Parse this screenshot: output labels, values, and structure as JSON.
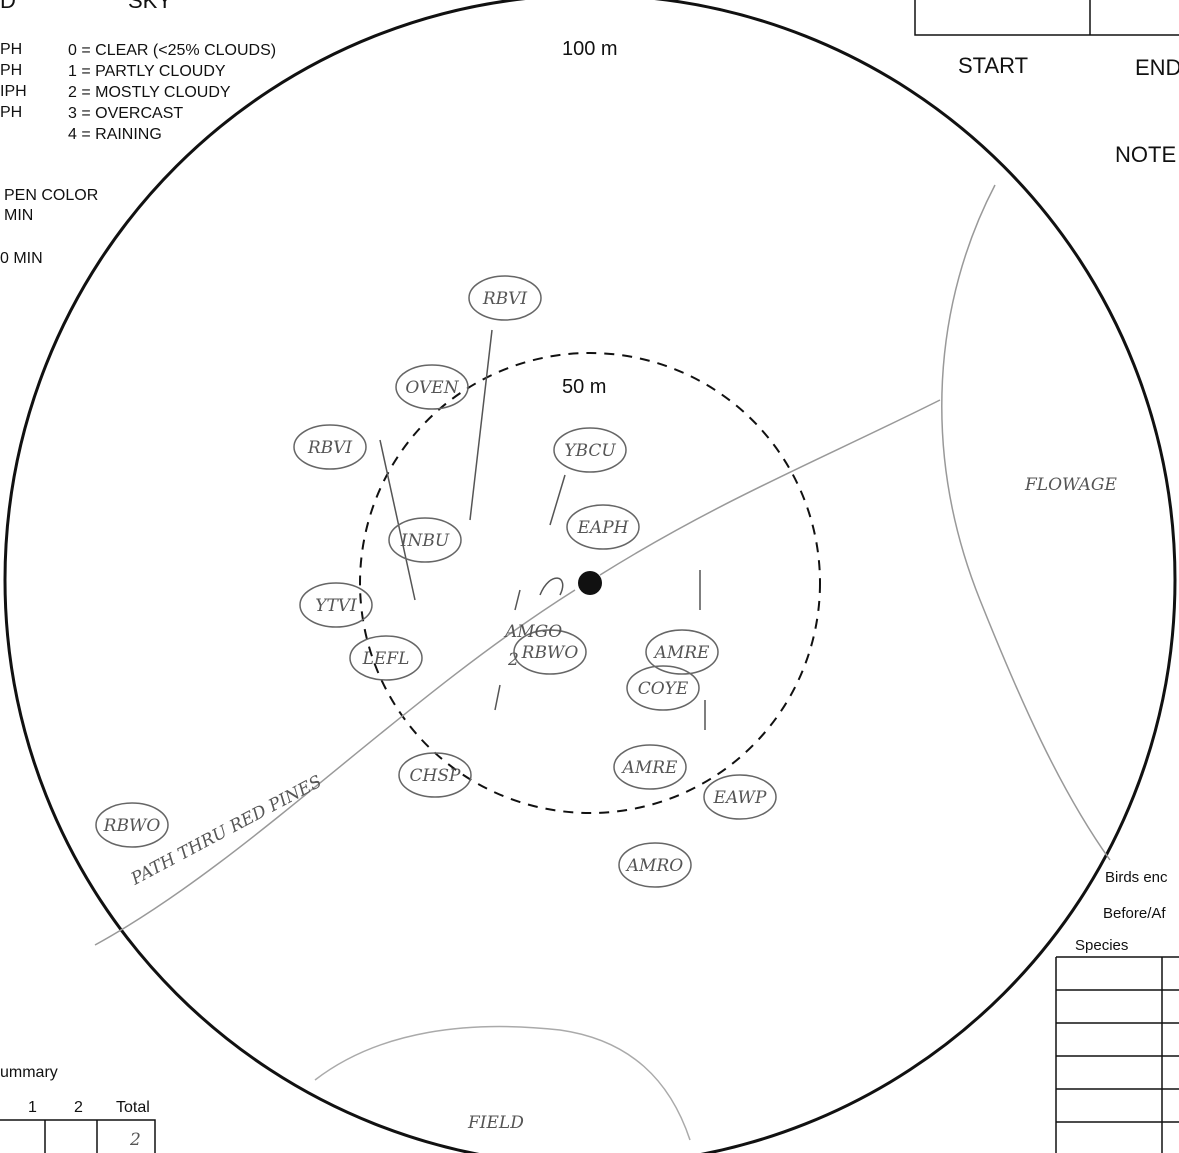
{
  "header": {
    "wind_code": "D",
    "sky_title": "SKY"
  },
  "wind_legend": [
    "PH",
    "PH",
    "IPH",
    "PH"
  ],
  "sky_legend": [
    "0 = CLEAR (<25% CLOUDS)",
    "1 = PARTLY CLOUDY",
    "2 = MOSTLY CLOUDY",
    "3 = OVERCAST",
    "4 = RAINING"
  ],
  "pen_notes": [
    "PEN COLOR",
    "MIN",
    "0 MIN"
  ],
  "radius_labels": {
    "outer": "100 m",
    "inner": "50 m"
  },
  "time_box": {
    "start": "START",
    "end": "END"
  },
  "notes_label": "NOTE",
  "birds": [
    "RBVI",
    "OVEN",
    "RBVI",
    "INBU",
    "YBCU",
    "EAPH",
    "YTVI",
    "LEFL",
    "RBWO",
    "AMRE",
    "COYE",
    "AMRE",
    "CHSP",
    "EAWP",
    "AMRO",
    "RBWO"
  ],
  "bird_notes": {
    "amgo": "AMGO",
    "count": "2"
  },
  "habitat_labels": {
    "path": "PATH THRU RED PINES",
    "flowage": "FLOWAGE",
    "field": "FIELD"
  },
  "summary_table": {
    "title": "ummary",
    "headers": [
      "1",
      "2",
      "Total"
    ],
    "total": "2"
  },
  "species_table": {
    "line1": "Birds enc",
    "line2": "Before/Af",
    "header": "Species"
  }
}
